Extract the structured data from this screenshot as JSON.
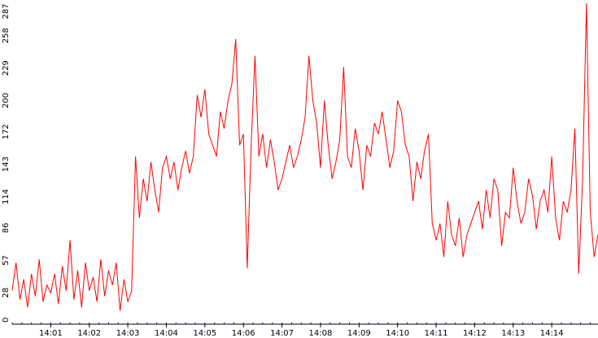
{
  "chart_data": {
    "type": "line",
    "title": "",
    "xlabel": "",
    "ylabel": "",
    "x_unit": "minutes",
    "xlim": [
      0,
      15.2
    ],
    "ylim": [
      0,
      287
    ],
    "y_ticks": [
      0,
      28,
      57,
      86,
      114,
      143,
      172,
      200,
      229,
      258,
      287
    ],
    "x_ticks": [
      {
        "value": 1,
        "label": "14:01"
      },
      {
        "value": 2,
        "label": "14:02"
      },
      {
        "value": 3,
        "label": "14:03"
      },
      {
        "value": 4,
        "label": "14:04"
      },
      {
        "value": 5,
        "label": "14:05"
      },
      {
        "value": 6,
        "label": "14:06"
      },
      {
        "value": 7,
        "label": "14:07"
      },
      {
        "value": 8,
        "label": "14:08"
      },
      {
        "value": 9,
        "label": "14:09"
      },
      {
        "value": 10,
        "label": "14:10"
      },
      {
        "value": 11,
        "label": "14:11"
      },
      {
        "value": 12,
        "label": "14:12"
      },
      {
        "value": 13,
        "label": "14:13"
      },
      {
        "value": 14,
        "label": "14:14"
      }
    ],
    "grid": false,
    "legend": "none",
    "series": [
      {
        "color": "#ff0000",
        "x": [
          0.0,
          0.1,
          0.2,
          0.3,
          0.4,
          0.5,
          0.6,
          0.7,
          0.8,
          0.9,
          1.0,
          1.1,
          1.2,
          1.3,
          1.4,
          1.5,
          1.6,
          1.7,
          1.8,
          1.9,
          2.0,
          2.1,
          2.2,
          2.3,
          2.4,
          2.5,
          2.6,
          2.7,
          2.8,
          2.9,
          3.0,
          3.1,
          3.2,
          3.3,
          3.4,
          3.5,
          3.6,
          3.7,
          3.8,
          3.9,
          4.0,
          4.1,
          4.2,
          4.3,
          4.4,
          4.5,
          4.6,
          4.7,
          4.8,
          4.9,
          5.0,
          5.1,
          5.2,
          5.3,
          5.4,
          5.5,
          5.6,
          5.7,
          5.8,
          5.9,
          6.0,
          6.1,
          6.2,
          6.3,
          6.4,
          6.5,
          6.6,
          6.7,
          6.8,
          6.9,
          7.0,
          7.1,
          7.2,
          7.3,
          7.4,
          7.5,
          7.6,
          7.7,
          7.8,
          7.9,
          8.0,
          8.1,
          8.2,
          8.3,
          8.4,
          8.5,
          8.6,
          8.7,
          8.8,
          8.9,
          9.0,
          9.1,
          9.2,
          9.3,
          9.4,
          9.5,
          9.6,
          9.7,
          9.8,
          9.9,
          10.0,
          10.1,
          10.2,
          10.3,
          10.4,
          10.5,
          10.6,
          10.7,
          10.8,
          10.9,
          11.0,
          11.1,
          11.2,
          11.3,
          11.4,
          11.5,
          11.6,
          11.7,
          11.8,
          11.9,
          12.0,
          12.1,
          12.2,
          12.3,
          12.4,
          12.5,
          12.6,
          12.7,
          12.8,
          12.9,
          13.0,
          13.1,
          13.2,
          13.3,
          13.4,
          13.5,
          13.6,
          13.7,
          13.8,
          13.9,
          14.0,
          14.1,
          14.2,
          14.3,
          14.4,
          14.5,
          14.6,
          14.7,
          14.8,
          14.9,
          15.0,
          15.1,
          15.2
        ],
        "y": [
          30,
          55,
          22,
          40,
          15,
          45,
          25,
          58,
          20,
          35,
          28,
          45,
          18,
          52,
          30,
          75,
          22,
          48,
          15,
          55,
          30,
          42,
          20,
          58,
          25,
          48,
          35,
          55,
          12,
          40,
          20,
          30,
          150,
          95,
          130,
          110,
          145,
          120,
          100,
          140,
          150,
          130,
          145,
          120,
          140,
          155,
          135,
          150,
          205,
          185,
          210,
          170,
          160,
          150,
          190,
          175,
          200,
          215,
          255,
          160,
          170,
          50,
          160,
          240,
          150,
          170,
          140,
          165,
          145,
          120,
          130,
          145,
          160,
          140,
          150,
          165,
          185,
          240,
          200,
          180,
          140,
          200,
          160,
          130,
          145,
          165,
          230,
          150,
          140,
          175,
          155,
          120,
          160,
          150,
          180,
          170,
          190,
          165,
          140,
          155,
          200,
          190,
          160,
          150,
          110,
          145,
          130,
          155,
          170,
          90,
          75,
          90,
          60,
          110,
          80,
          70,
          95,
          60,
          80,
          90,
          100,
          110,
          85,
          120,
          95,
          130,
          120,
          70,
          100,
          95,
          140,
          110,
          90,
          100,
          130,
          115,
          85,
          110,
          120,
          100,
          150,
          95,
          75,
          110,
          100,
          120,
          175,
          45,
          130,
          287,
          100,
          60,
          80
        ]
      }
    ]
  }
}
